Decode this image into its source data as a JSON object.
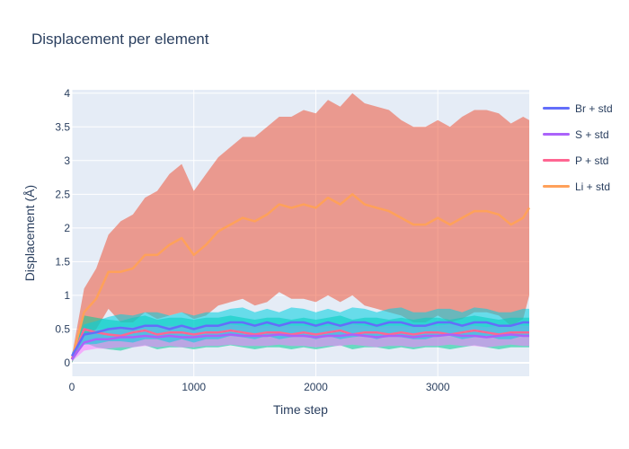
{
  "title": "Displacement per element",
  "chart_data": {
    "type": "line",
    "title": "Displacement per element",
    "xlabel": "Time step",
    "ylabel": "Displacement (Å)",
    "xlim": [
      0,
      3750
    ],
    "ylim": [
      -0.2,
      4.05
    ],
    "xticks": [
      0,
      1000,
      2000,
      3000
    ],
    "yticks": [
      0,
      0.5,
      1,
      1.5,
      2,
      2.5,
      3,
      3.5,
      4
    ],
    "x": [
      0,
      100,
      200,
      300,
      400,
      500,
      600,
      700,
      800,
      900,
      1000,
      1100,
      1200,
      1300,
      1400,
      1500,
      1600,
      1700,
      1800,
      1900,
      2000,
      2100,
      2200,
      2300,
      2400,
      2500,
      2600,
      2700,
      2800,
      2900,
      3000,
      3100,
      3200,
      3300,
      3400,
      3500,
      3600,
      3700,
      3750
    ],
    "series": [
      {
        "name": "Br + std",
        "color": "#636efa",
        "band_color": "#00cfe0",
        "mean": [
          0.1,
          0.42,
          0.45,
          0.5,
          0.52,
          0.5,
          0.55,
          0.55,
          0.5,
          0.55,
          0.5,
          0.55,
          0.55,
          0.6,
          0.6,
          0.55,
          0.6,
          0.55,
          0.6,
          0.6,
          0.55,
          0.6,
          0.55,
          0.6,
          0.6,
          0.55,
          0.6,
          0.6,
          0.55,
          0.55,
          0.6,
          0.6,
          0.55,
          0.6,
          0.6,
          0.55,
          0.55,
          0.6,
          0.6
        ],
        "std": [
          0.05,
          0.15,
          0.17,
          0.18,
          0.2,
          0.2,
          0.2,
          0.2,
          0.2,
          0.2,
          0.2,
          0.2,
          0.2,
          0.2,
          0.22,
          0.2,
          0.2,
          0.2,
          0.22,
          0.2,
          0.2,
          0.2,
          0.2,
          0.22,
          0.2,
          0.2,
          0.2,
          0.22,
          0.2,
          0.2,
          0.2,
          0.2,
          0.2,
          0.22,
          0.2,
          0.2,
          0.2,
          0.2,
          0.2
        ]
      },
      {
        "name": "S + std",
        "color": "#ab63fa",
        "band_color": "#ff7bff",
        "mean": [
          0.05,
          0.3,
          0.35,
          0.35,
          0.38,
          0.38,
          0.4,
          0.38,
          0.4,
          0.38,
          0.38,
          0.4,
          0.4,
          0.42,
          0.4,
          0.4,
          0.4,
          0.42,
          0.4,
          0.4,
          0.38,
          0.4,
          0.4,
          0.42,
          0.4,
          0.38,
          0.4,
          0.4,
          0.38,
          0.4,
          0.4,
          0.42,
          0.4,
          0.4,
          0.38,
          0.4,
          0.42,
          0.4,
          0.4
        ],
        "std": [
          0.03,
          0.12,
          0.14,
          0.14,
          0.15,
          0.15,
          0.15,
          0.15,
          0.15,
          0.15,
          0.15,
          0.15,
          0.15,
          0.15,
          0.15,
          0.15,
          0.15,
          0.15,
          0.15,
          0.15,
          0.15,
          0.15,
          0.15,
          0.15,
          0.15,
          0.15,
          0.15,
          0.15,
          0.15,
          0.15,
          0.15,
          0.15,
          0.15,
          0.15,
          0.15,
          0.15,
          0.15,
          0.15,
          0.15
        ]
      },
      {
        "name": "P + std",
        "color": "#ff6692",
        "band_color": "#00cc96",
        "mean": [
          0.05,
          0.5,
          0.45,
          0.42,
          0.4,
          0.45,
          0.48,
          0.42,
          0.45,
          0.45,
          0.42,
          0.45,
          0.45,
          0.48,
          0.45,
          0.42,
          0.45,
          0.45,
          0.42,
          0.45,
          0.42,
          0.45,
          0.48,
          0.42,
          0.45,
          0.45,
          0.42,
          0.45,
          0.42,
          0.45,
          0.45,
          0.42,
          0.45,
          0.48,
          0.45,
          0.42,
          0.45,
          0.45,
          0.45
        ],
        "std": [
          0.05,
          0.2,
          0.22,
          0.22,
          0.22,
          0.22,
          0.22,
          0.22,
          0.22,
          0.22,
          0.22,
          0.22,
          0.22,
          0.22,
          0.22,
          0.22,
          0.22,
          0.22,
          0.22,
          0.22,
          0.22,
          0.22,
          0.22,
          0.22,
          0.22,
          0.22,
          0.22,
          0.22,
          0.22,
          0.22,
          0.22,
          0.22,
          0.22,
          0.22,
          0.22,
          0.22,
          0.22,
          0.22,
          0.22
        ]
      },
      {
        "name": "Li + std",
        "color": "#ffa15a",
        "band_color": "#ef553b",
        "mean": [
          0.05,
          0.75,
          0.95,
          1.35,
          1.35,
          1.4,
          1.6,
          1.6,
          1.75,
          1.85,
          1.6,
          1.75,
          1.95,
          2.05,
          2.15,
          2.1,
          2.2,
          2.35,
          2.3,
          2.35,
          2.3,
          2.45,
          2.35,
          2.5,
          2.35,
          2.3,
          2.25,
          2.15,
          2.05,
          2.05,
          2.15,
          2.05,
          2.15,
          2.25,
          2.25,
          2.2,
          2.05,
          2.15,
          2.3
        ],
        "std": [
          0.05,
          0.35,
          0.45,
          0.55,
          0.75,
          0.8,
          0.85,
          0.95,
          1.05,
          1.1,
          0.95,
          1.05,
          1.1,
          1.15,
          1.2,
          1.25,
          1.3,
          1.3,
          1.35,
          1.4,
          1.4,
          1.45,
          1.45,
          1.5,
          1.5,
          1.5,
          1.5,
          1.45,
          1.45,
          1.45,
          1.45,
          1.45,
          1.5,
          1.5,
          1.5,
          1.5,
          1.5,
          1.5,
          1.3
        ]
      }
    ],
    "grid": true,
    "legend_position": "right"
  }
}
